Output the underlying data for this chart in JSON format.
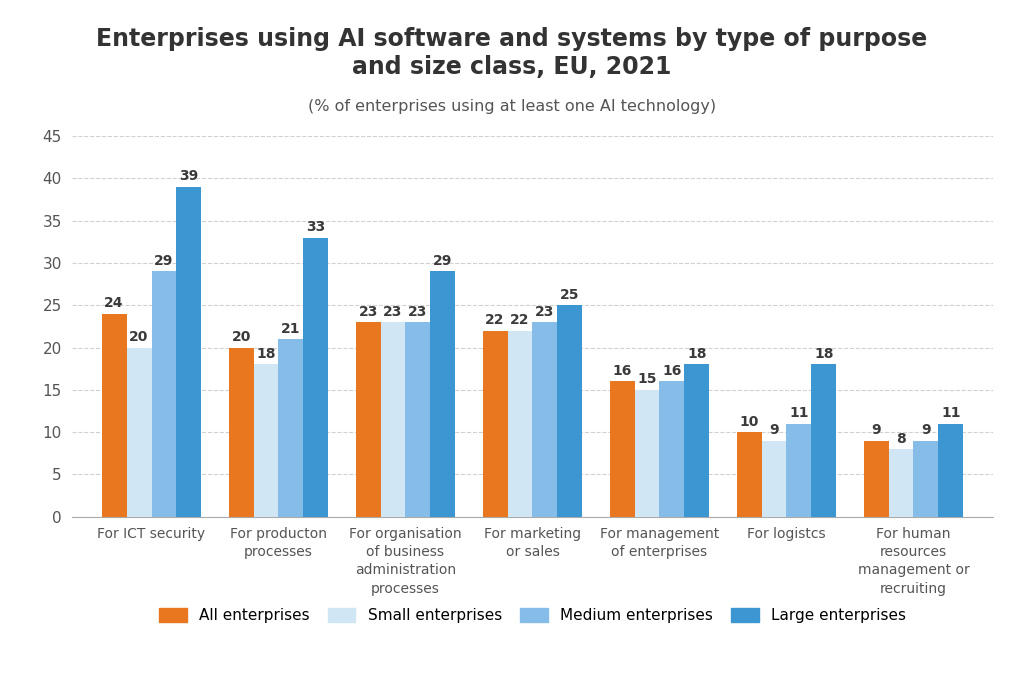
{
  "title": "Enterprises using AI software and systems by type of purpose\nand size class, EU, 2021",
  "subtitle": "(% of enterprises using at least one AI technology)",
  "categories": [
    "For ICT security",
    "For producton\nprocesses",
    "For organisation\nof business\nadministration\nprocesses",
    "For marketing\nor sales",
    "For management\nof enterprises",
    "For logistcs",
    "For human\nresources\nmanagement or\nrecruiting"
  ],
  "series": {
    "All enterprises": [
      24,
      20,
      23,
      22,
      16,
      10,
      9
    ],
    "Small enterprises": [
      20,
      18,
      23,
      22,
      15,
      9,
      8
    ],
    "Medium enterprises": [
      29,
      21,
      23,
      23,
      16,
      11,
      9
    ],
    "Large enterprises": [
      39,
      33,
      29,
      25,
      18,
      18,
      11
    ]
  },
  "colors": {
    "All enterprises": "#E8771F",
    "Small enterprises": "#D0E6F5",
    "Medium enterprises": "#85BDE8",
    "Large enterprises": "#3B96D2"
  },
  "ylim": [
    0,
    45
  ],
  "yticks": [
    0,
    5,
    10,
    15,
    20,
    25,
    30,
    35,
    40,
    45
  ],
  "background_color": "#ffffff",
  "title_fontsize": 17,
  "subtitle_fontsize": 11.5,
  "tick_fontsize": 11,
  "label_fontsize": 10,
  "bar_value_fontsize": 10,
  "legend_fontsize": 11
}
